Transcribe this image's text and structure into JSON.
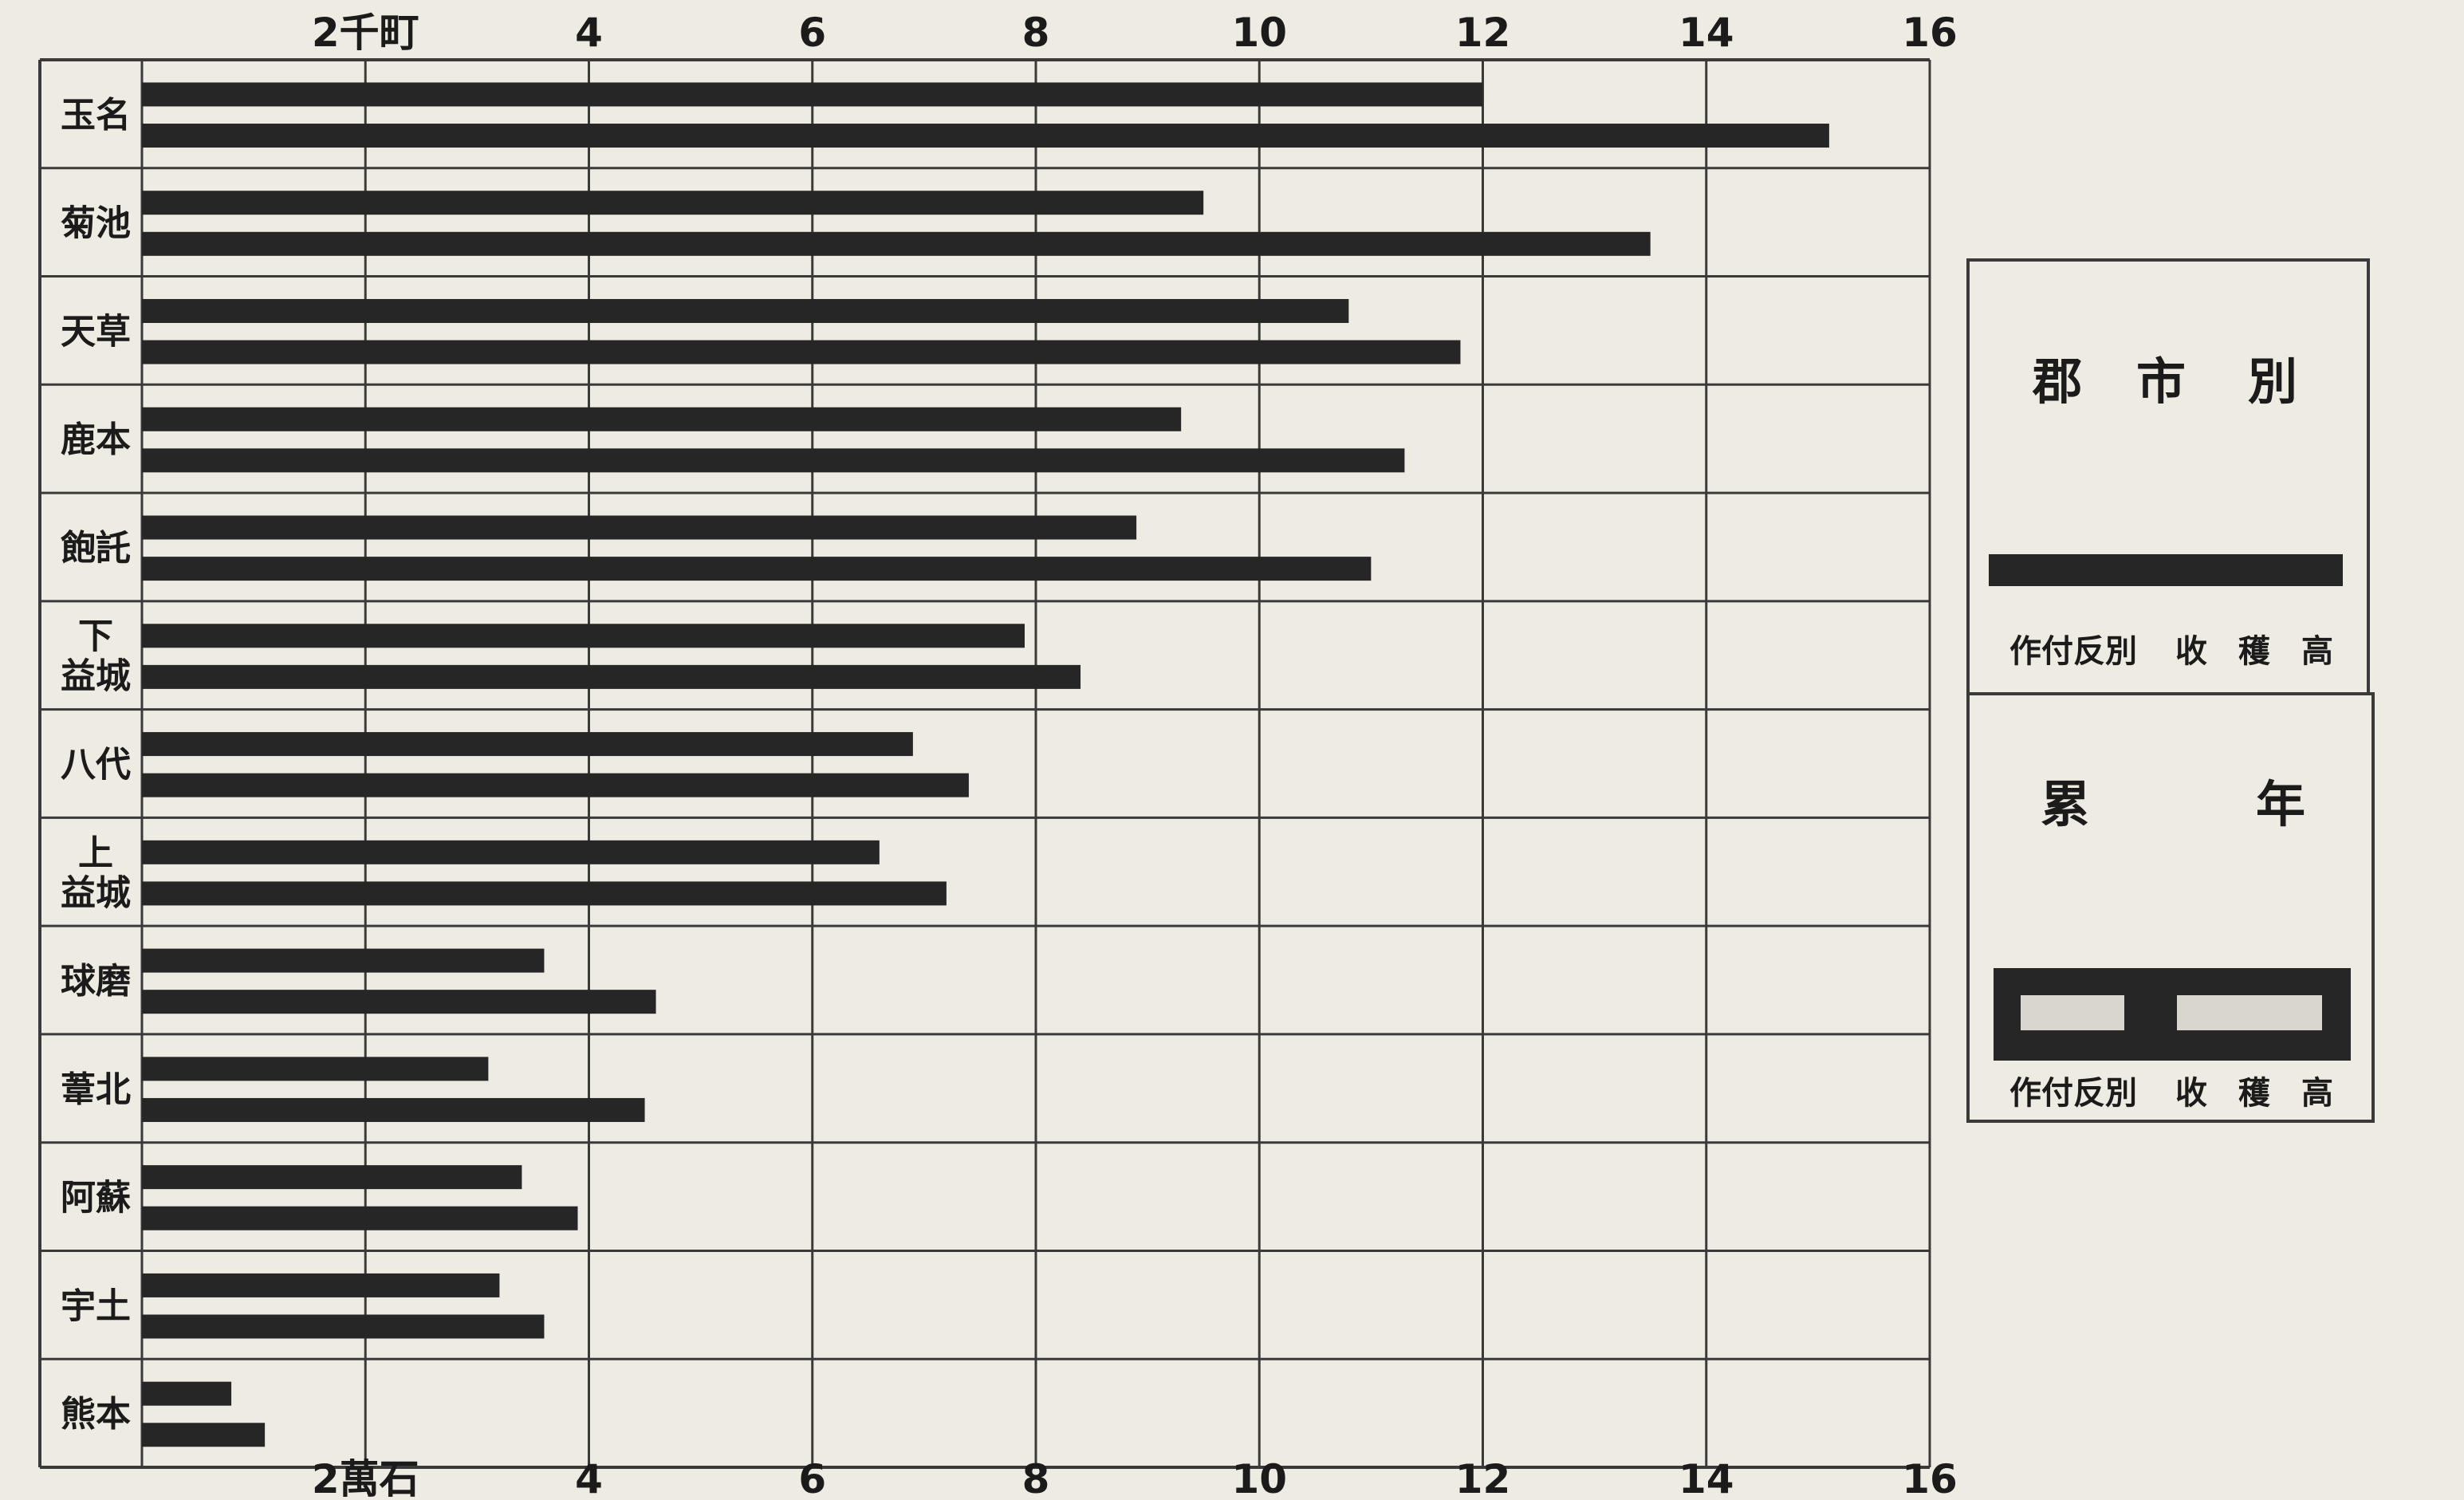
{
  "chart_data": {
    "type": "bar",
    "orientation": "horizontal",
    "categories": [
      [
        "玉名"
      ],
      [
        "菊池"
      ],
      [
        "天草"
      ],
      [
        "鹿本"
      ],
      [
        "飽託"
      ],
      [
        "下",
        "益城"
      ],
      [
        "八代"
      ],
      [
        "上",
        "益城"
      ],
      [
        "球磨"
      ],
      [
        "葦北"
      ],
      [
        "阿蘇"
      ],
      [
        "宇土"
      ],
      [
        "熊本"
      ]
    ],
    "series": [
      {
        "values": [
          12.0,
          9.5,
          10.8,
          9.3,
          8.9,
          7.9,
          6.9,
          6.6,
          3.6,
          3.1,
          3.4,
          3.2,
          0.8
        ]
      },
      {
        "values": [
          15.1,
          13.5,
          11.8,
          11.3,
          11.0,
          8.4,
          7.4,
          7.2,
          4.6,
          4.5,
          3.9,
          3.6,
          1.1
        ]
      }
    ],
    "xlim": [
      0,
      16
    ],
    "top_axis": {
      "ticks": [
        2,
        4,
        6,
        8,
        10,
        12,
        14,
        16
      ],
      "tick_labels": [
        "2千町",
        "4",
        "6",
        "8",
        "10",
        "12",
        "14",
        "16"
      ]
    },
    "bottom_axis": {
      "ticks": [
        2,
        4,
        6,
        8,
        10,
        12,
        14,
        16
      ],
      "tick_labels": [
        "2萬石",
        "4",
        "6",
        "8",
        "10",
        "12",
        "14",
        "16"
      ]
    },
    "grid": true,
    "legend": {
      "position": "right",
      "top_title": [
        "郡",
        "市",
        "別"
      ],
      "top_caption": [
        "作付反別",
        "收",
        "穫",
        "高"
      ],
      "bottom_title": [
        "累",
        "年"
      ],
      "bottom_caption": [
        "作付反別",
        "收",
        "穫",
        "高"
      ]
    },
    "colors": {
      "bar": "#262626",
      "grid": "#3a3a3a",
      "paper": "#eeebe2",
      "legend_fill": "#d9d6ce"
    }
  }
}
